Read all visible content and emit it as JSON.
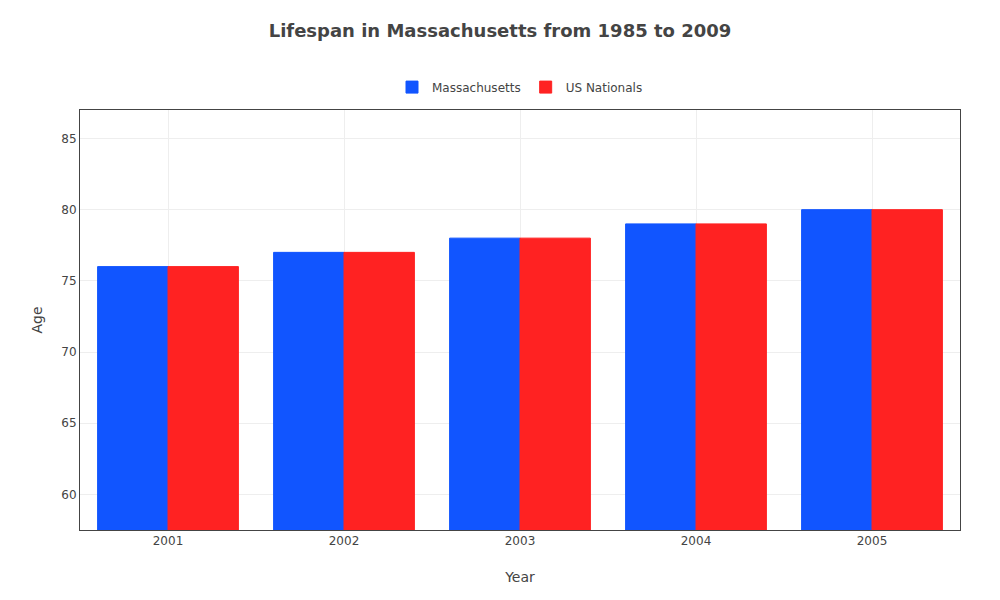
{
  "chart_data": {
    "type": "bar",
    "title": "Lifespan in Massachusetts from 1985 to 2009",
    "x_label": "Year",
    "y_label": "Age",
    "categories": [
      "2001",
      "2002",
      "2003",
      "2004",
      "2005"
    ],
    "series": [
      {
        "name": "Massachusetts",
        "color": "#1155ff",
        "values": [
          76,
          77,
          78,
          79,
          80
        ]
      },
      {
        "name": "US Nationals",
        "color": "#ff2222",
        "values": [
          76,
          77,
          78,
          79,
          80
        ]
      }
    ],
    "ylim": [
      57.5,
      87
    ],
    "yticks": [
      60,
      65,
      70,
      75,
      80,
      85
    ],
    "grid": true,
    "legend": "top"
  }
}
